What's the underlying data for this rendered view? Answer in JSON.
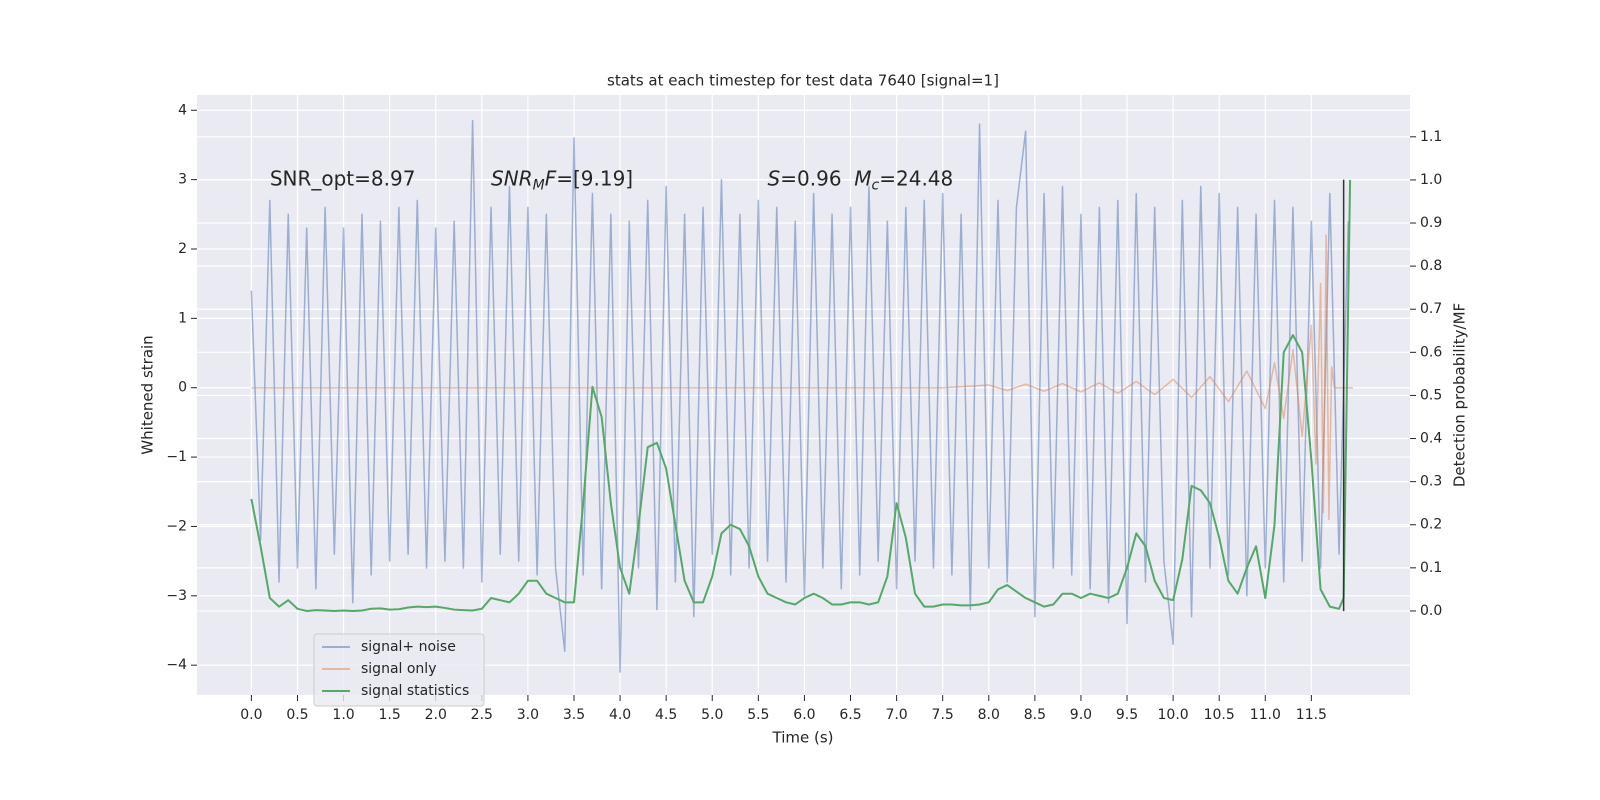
{
  "chart_data": {
    "type": "line",
    "title": "stats at each timestep for test data 7640 [signal=1]",
    "xlabel": "Time (s)",
    "ylabel": "Whitened strain",
    "y2label": "Detection probability/MF",
    "xlim": [
      -0.59,
      12.57
    ],
    "ylim": [
      -4.43,
      4.22
    ],
    "y2lim": [
      -0.195,
      1.197
    ],
    "xticks": [
      {
        "value": 0,
        "label": "0.0"
      },
      0.5,
      {
        "value": 1,
        "label": "1.0"
      },
      1.5,
      {
        "value": 2,
        "label": "2.0"
      },
      2.5,
      {
        "value": 3,
        "label": "3.0"
      },
      3.5,
      {
        "value": 4,
        "label": "4.0"
      },
      4.5,
      {
        "value": 5,
        "label": "5.0"
      },
      5.5,
      {
        "value": 6,
        "label": "6.0"
      },
      6.5,
      {
        "value": 7,
        "label": "7.0"
      },
      7.5,
      {
        "value": 8,
        "label": "8.0"
      },
      8.5,
      {
        "value": 9,
        "label": "9.0"
      },
      9.5,
      {
        "value": 10,
        "label": "10.0"
      },
      10.5,
      {
        "value": 11,
        "label": "11.0"
      },
      11.5
    ],
    "yticks": [
      {
        "value": -4,
        "label": "−4"
      },
      {
        "value": -3,
        "label": "−3"
      },
      {
        "value": -2,
        "label": "−2"
      },
      {
        "value": -1,
        "label": "−1"
      },
      0,
      1,
      2,
      3,
      4
    ],
    "y2ticks": [
      {
        "value": 0,
        "label": "0.0"
      },
      0.1,
      0.2,
      0.3,
      0.4,
      0.5,
      0.6,
      0.7,
      0.8,
      0.9,
      {
        "value": 1,
        "label": "1.0"
      },
      1.1
    ],
    "grid": true,
    "series": [
      {
        "name": "signal+ noise",
        "color": "#4c72b0",
        "alpha": 0.5,
        "x": [
          0.0,
          0.1,
          0.2,
          0.3,
          0.4,
          0.5,
          0.6,
          0.7,
          0.8,
          0.9,
          1.0,
          1.1,
          1.2,
          1.3,
          1.4,
          1.5,
          1.6,
          1.7,
          1.8,
          1.9,
          2.0,
          2.1,
          2.2,
          2.3,
          2.4,
          2.5,
          2.6,
          2.7,
          2.8,
          2.9,
          3.0,
          3.1,
          3.2,
          3.3,
          3.4,
          3.5,
          3.6,
          3.7,
          3.8,
          3.9,
          4.0,
          4.1,
          4.2,
          4.3,
          4.4,
          4.5,
          4.6,
          4.7,
          4.8,
          4.9,
          5.0,
          5.1,
          5.2,
          5.3,
          5.4,
          5.5,
          5.6,
          5.7,
          5.8,
          5.9,
          6.0,
          6.1,
          6.2,
          6.3,
          6.4,
          6.5,
          6.6,
          6.7,
          6.8,
          6.9,
          7.0,
          7.1,
          7.2,
          7.3,
          7.4,
          7.5,
          7.6,
          7.7,
          7.8,
          7.9,
          8.0,
          8.1,
          8.2,
          8.3,
          8.4,
          8.5,
          8.6,
          8.7,
          8.8,
          8.9,
          9.0,
          9.1,
          9.2,
          9.3,
          9.4,
          9.5,
          9.6,
          9.7,
          9.8,
          9.9,
          10.0,
          10.1,
          10.2,
          10.3,
          10.4,
          10.5,
          10.6,
          10.7,
          10.8,
          10.9,
          11.0,
          11.1,
          11.2,
          11.3,
          11.4,
          11.5,
          11.6,
          11.7,
          11.8,
          11.9
        ],
        "values": [
          1.4,
          -2.2,
          2.7,
          -2.8,
          2.5,
          -2.6,
          2.3,
          -2.9,
          2.6,
          -2.4,
          2.3,
          -3.1,
          2.5,
          -2.7,
          2.4,
          -2.5,
          2.6,
          -2.4,
          2.7,
          -2.6,
          2.3,
          -2.5,
          2.4,
          -2.6,
          3.85,
          -2.8,
          2.6,
          -2.4,
          2.9,
          -2.5,
          2.6,
          -2.7,
          2.5,
          -2.6,
          -3.8,
          3.6,
          -2.7,
          2.8,
          -2.9,
          2.5,
          -4.1,
          2.4,
          -2.6,
          2.7,
          -3.2,
          2.9,
          -2.8,
          2.5,
          -3.3,
          2.6,
          -2.4,
          3.0,
          -2.7,
          2.5,
          -2.6,
          2.7,
          -2.5,
          2.6,
          -2.8,
          2.4,
          -3.0,
          2.8,
          -2.6,
          2.5,
          -2.9,
          2.6,
          -2.7,
          2.9,
          -2.5,
          2.4,
          -2.9,
          2.6,
          -2.5,
          2.7,
          -2.6,
          2.8,
          -2.7,
          2.5,
          -3.2,
          3.8,
          -2.6,
          2.7,
          -2.8,
          2.6,
          3.7,
          -3.3,
          2.8,
          -2.6,
          2.9,
          -2.7,
          2.5,
          -2.9,
          2.6,
          -3.1,
          2.7,
          -3.4,
          2.8,
          -2.8,
          2.6,
          -2.5,
          -3.7,
          2.7,
          -3.3,
          2.9,
          -2.6,
          2.8,
          -2.7,
          2.6,
          -3.0,
          2.5,
          -2.6,
          2.7,
          -2.8,
          2.6,
          -2.5,
          2.4,
          -2.6,
          2.8,
          -2.4,
          2.4
        ]
      },
      {
        "name": "signal only",
        "color": "#dd8452",
        "alpha": 0.5,
        "x": [
          0.0,
          7.5,
          8.0,
          8.2,
          8.4,
          8.6,
          8.8,
          9.0,
          9.2,
          9.4,
          9.6,
          9.8,
          10.0,
          10.2,
          10.4,
          10.6,
          10.8,
          11.0,
          11.1,
          11.2,
          11.3,
          11.4,
          11.5,
          11.55,
          11.6,
          11.63,
          11.66,
          11.69,
          11.72,
          11.75,
          11.95
        ],
        "values": [
          0,
          0,
          0.04,
          -0.04,
          0.05,
          -0.05,
          0.06,
          -0.06,
          0.07,
          -0.08,
          0.09,
          -0.1,
          0.12,
          -0.14,
          0.16,
          -0.2,
          0.24,
          -0.3,
          0.36,
          -0.44,
          0.55,
          -0.7,
          0.9,
          -1.1,
          1.5,
          -1.8,
          2.2,
          -1.9,
          0.3,
          0,
          0
        ]
      },
      {
        "name": "signal statistics",
        "color": "#55a868",
        "alpha": 1,
        "axis": "y2",
        "x": [
          0.0,
          0.1,
          0.2,
          0.3,
          0.4,
          0.5,
          0.6,
          0.7,
          0.8,
          0.9,
          1.0,
          1.1,
          1.2,
          1.3,
          1.4,
          1.5,
          1.6,
          1.7,
          1.8,
          1.9,
          2.0,
          2.1,
          2.2,
          2.3,
          2.4,
          2.5,
          2.6,
          2.7,
          2.8,
          2.9,
          3.0,
          3.1,
          3.2,
          3.3,
          3.4,
          3.5,
          3.6,
          3.7,
          3.8,
          3.9,
          4.0,
          4.1,
          4.2,
          4.3,
          4.4,
          4.5,
          4.6,
          4.7,
          4.8,
          4.9,
          5.0,
          5.1,
          5.2,
          5.3,
          5.4,
          5.5,
          5.6,
          5.7,
          5.8,
          5.9,
          6.0,
          6.1,
          6.2,
          6.3,
          6.4,
          6.5,
          6.6,
          6.7,
          6.8,
          6.9,
          7.0,
          7.1,
          7.2,
          7.3,
          7.4,
          7.5,
          7.6,
          7.7,
          7.8,
          7.9,
          8.0,
          8.1,
          8.2,
          8.3,
          8.4,
          8.5,
          8.6,
          8.7,
          8.8,
          8.9,
          9.0,
          9.1,
          9.2,
          9.3,
          9.4,
          9.5,
          9.6,
          9.7,
          9.8,
          9.9,
          10.0,
          10.1,
          10.2,
          10.3,
          10.4,
          10.5,
          10.6,
          10.7,
          10.8,
          10.9,
          11.0,
          11.1,
          11.2,
          11.3,
          11.4,
          11.5,
          11.6,
          11.7,
          11.8,
          11.85,
          11.92
        ],
        "values": [
          0.26,
          0.15,
          0.03,
          0.01,
          0.025,
          0.005,
          0.0,
          0.002,
          0.001,
          0.0,
          0.001,
          0.0,
          0.001,
          0.005,
          0.006,
          0.003,
          0.004,
          0.008,
          0.01,
          0.009,
          0.01,
          0.007,
          0.003,
          0.002,
          0.001,
          0.005,
          0.03,
          0.025,
          0.02,
          0.04,
          0.07,
          0.07,
          0.04,
          0.03,
          0.02,
          0.02,
          0.25,
          0.52,
          0.45,
          0.25,
          0.1,
          0.04,
          0.2,
          0.38,
          0.39,
          0.33,
          0.2,
          0.07,
          0.02,
          0.02,
          0.08,
          0.18,
          0.2,
          0.19,
          0.15,
          0.08,
          0.04,
          0.03,
          0.02,
          0.015,
          0.03,
          0.04,
          0.03,
          0.015,
          0.015,
          0.02,
          0.02,
          0.015,
          0.02,
          0.08,
          0.25,
          0.17,
          0.04,
          0.01,
          0.01,
          0.015,
          0.015,
          0.013,
          0.013,
          0.015,
          0.02,
          0.05,
          0.06,
          0.045,
          0.03,
          0.02,
          0.01,
          0.015,
          0.04,
          0.04,
          0.03,
          0.04,
          0.035,
          0.03,
          0.04,
          0.1,
          0.18,
          0.15,
          0.07,
          0.03,
          0.025,
          0.12,
          0.29,
          0.28,
          0.25,
          0.17,
          0.07,
          0.04,
          0.1,
          0.15,
          0.03,
          0.2,
          0.6,
          0.64,
          0.6,
          0.35,
          0.05,
          0.01,
          0.005,
          0.03,
          1.0
        ]
      }
    ],
    "vertical_line": {
      "x": 11.85,
      "ymin": -3.22,
      "ymax": 3.0,
      "color": "#333333"
    },
    "annotations": [
      {
        "x": 0.2,
        "y": 3,
        "parts": [
          {
            "text": "SNR_opt=8.97"
          }
        ]
      },
      {
        "x": 2.6,
        "y": 3,
        "parts": [
          {
            "text": "SNR",
            "italic": true
          },
          {
            "text": "M",
            "italic": true,
            "subscript": true
          },
          {
            "text": "F",
            "italic": true
          },
          {
            "text": "=[9.19]"
          }
        ]
      },
      {
        "x": 5.6,
        "y": 3,
        "parts": [
          {
            "text": "S",
            "italic": true
          },
          {
            "text": "=0.96  "
          },
          {
            "text": "M",
            "italic": true
          },
          {
            "text": "c",
            "italic": true,
            "subscript": true
          },
          {
            "text": "=24.48"
          }
        ]
      }
    ]
  }
}
